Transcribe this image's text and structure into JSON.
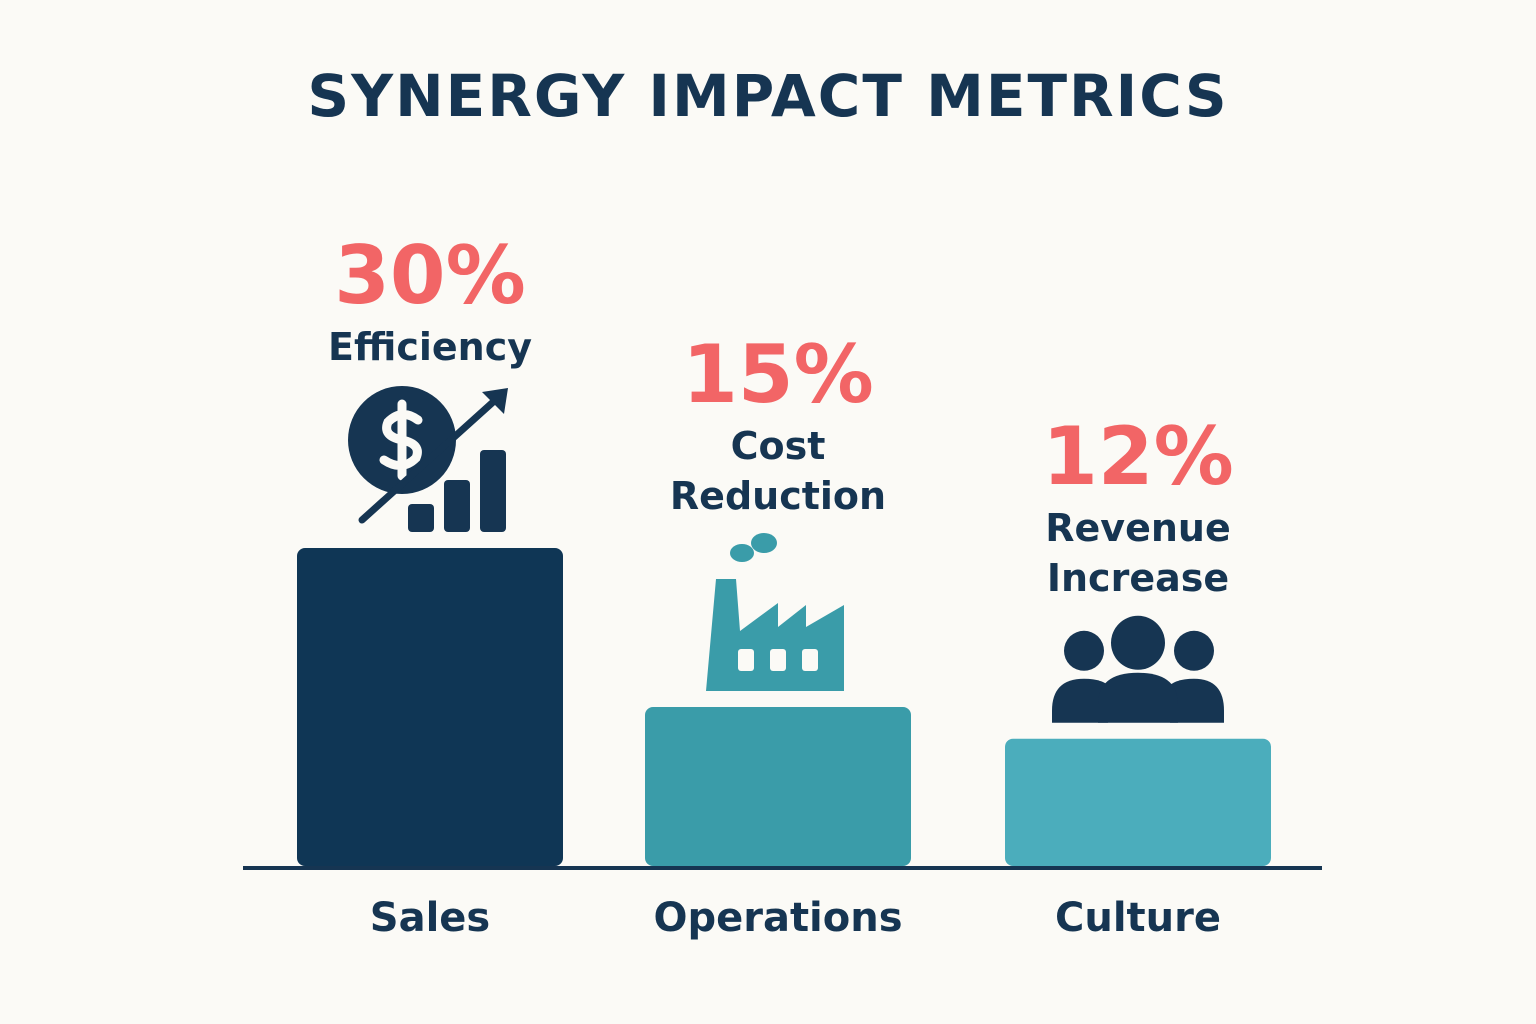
{
  "chart_data": {
    "type": "bar",
    "title": "SYNERGY IMPACT METRICS",
    "categories": [
      "Sales",
      "Operations",
      "Culture"
    ],
    "values": [
      30,
      15,
      12
    ],
    "value_labels": [
      "30%",
      "15%",
      "12%"
    ],
    "annotations": [
      "Efficiency",
      "Cost Reduction",
      "Revenue Increase"
    ],
    "colors": [
      "#0f3655",
      "#3a9ca9",
      "#4badbc"
    ]
  }
}
